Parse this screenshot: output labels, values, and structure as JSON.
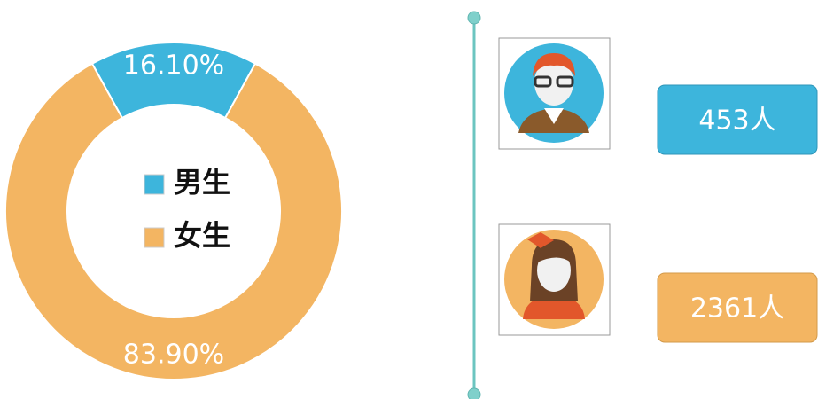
{
  "chart_data": {
    "type": "pie",
    "donut": true,
    "categories": [
      "男生",
      "女生"
    ],
    "values": [
      16.1,
      83.9
    ],
    "value_labels": [
      "16.10%",
      "83.90%"
    ],
    "colors": [
      "#3db5dc",
      "#f3b562"
    ]
  },
  "cards": [
    "453人",
    "2361人"
  ]
}
